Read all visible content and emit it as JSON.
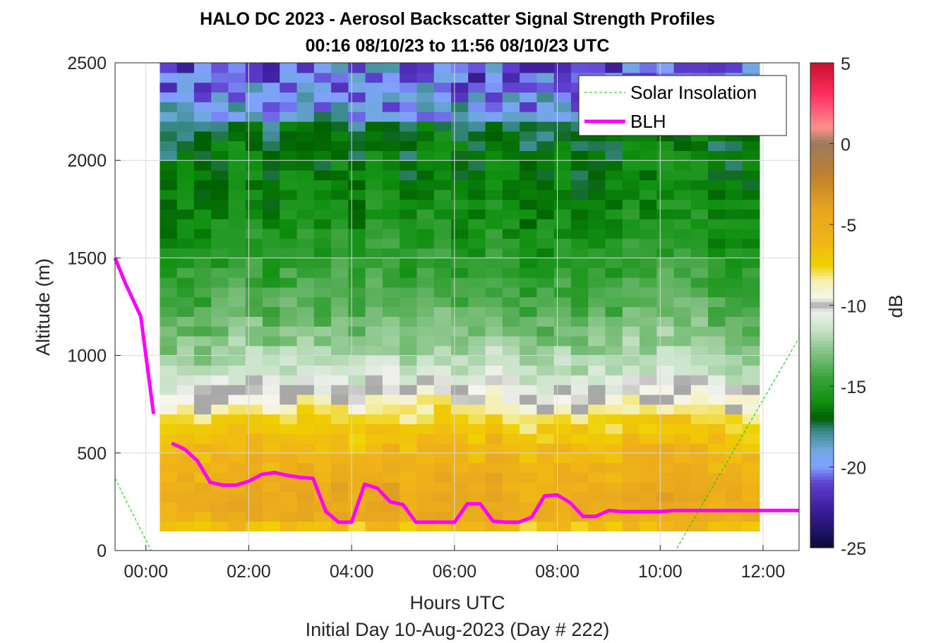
{
  "chart_data": {
    "type": "heatmap",
    "title": "HALO DC 2023 - Aerosol Backscatter Signal Strength Profiles",
    "subtitle": "00:16 08/10/23 to 11:56 08/10/23  UTC",
    "xlabel": "Hours UTC",
    "xlabel2": "Initial Day 10-Aug-2023 (Day # 222)",
    "ylabel": "Altitude (m)",
    "colorbar_label": "dB",
    "xlim": [
      -0.6,
      12.7
    ],
    "ylim": [
      0,
      2500
    ],
    "x_ticks": [
      0,
      2,
      4,
      6,
      8,
      10,
      12
    ],
    "x_tick_labels": [
      "00:00",
      "02:00",
      "04:00",
      "06:00",
      "08:00",
      "10:00",
      "12:00"
    ],
    "y_ticks": [
      0,
      500,
      1000,
      1500,
      2000,
      2500
    ],
    "y_tick_labels": [
      "0",
      "500",
      "1000",
      "1500",
      "2000",
      "2500"
    ],
    "clim": [
      -25,
      5
    ],
    "colorbar_ticks": [
      5,
      0,
      -5,
      -10,
      -15,
      -20,
      -25
    ],
    "colorbar_tick_labels": [
      "5",
      "0",
      "-5",
      "-10",
      "-15",
      "-20",
      "-25"
    ],
    "grid": true,
    "legend_position": "top-right",
    "heatmap": {
      "x_start": 0.27,
      "x_end": 11.93,
      "columns": 35,
      "alt_bottom": 100,
      "alt_top": 2500,
      "row_height_m": 50,
      "profile": [
        {
          "alt": 100,
          "db": -8.2
        },
        {
          "alt": 150,
          "db": -5.2
        },
        {
          "alt": 300,
          "db": -4.8
        },
        {
          "alt": 500,
          "db": -6.0
        },
        {
          "alt": 650,
          "db": -7.2
        },
        {
          "alt": 750,
          "db": -8.8
        },
        {
          "alt": 850,
          "db": -10.5
        },
        {
          "alt": 950,
          "db": -11.8
        },
        {
          "alt": 1100,
          "db": -13.0
        },
        {
          "alt": 1300,
          "db": -14.2
        },
        {
          "alt": 1500,
          "db": -15.2
        },
        {
          "alt": 1800,
          "db": -16.2
        },
        {
          "alt": 2100,
          "db": -16.8
        },
        {
          "alt": 2300,
          "db": -17.8
        },
        {
          "alt": 2500,
          "db": -19.5
        }
      ]
    },
    "series": [
      {
        "name": "BLH",
        "color": "#ff00ff",
        "x": [
          -0.6,
          -0.4,
          -0.1,
          0.15,
          null,
          0.5,
          0.75,
          1.0,
          1.25,
          1.5,
          1.75,
          2.0,
          2.25,
          2.5,
          2.75,
          3.0,
          3.25,
          3.5,
          3.75,
          4.0,
          4.25,
          4.5,
          4.75,
          5.0,
          5.25,
          5.5,
          5.75,
          6.0,
          6.25,
          6.5,
          6.75,
          7.0,
          7.25,
          7.5,
          7.75,
          8.0,
          8.25,
          8.5,
          8.75,
          9.0,
          9.25,
          9.5,
          9.75,
          10.0,
          10.25,
          10.5,
          10.75,
          11.0,
          11.25,
          11.5,
          11.75,
          12.0,
          12.25,
          12.5,
          12.7
        ],
        "y": [
          1500,
          1370,
          1200,
          700,
          null,
          550,
          520,
          460,
          350,
          335,
          335,
          355,
          390,
          400,
          385,
          375,
          370,
          200,
          145,
          145,
          340,
          320,
          250,
          235,
          145,
          145,
          145,
          145,
          240,
          240,
          150,
          145,
          145,
          170,
          280,
          285,
          245,
          175,
          175,
          205,
          200,
          200,
          200,
          200,
          205,
          205,
          205,
          205,
          205,
          205,
          205,
          205,
          205,
          205,
          205
        ]
      },
      {
        "name": "Solar Insolation",
        "color": "#00cc00",
        "x": [
          -0.6,
          0.1,
          10.3,
          12.7
        ],
        "y": [
          370,
          0,
          0,
          1090
        ]
      }
    ],
    "notes_gray_cells": [
      -10
    ]
  },
  "legend": {
    "solar_label": "Solar Insolation",
    "blh_label": "BLH"
  }
}
